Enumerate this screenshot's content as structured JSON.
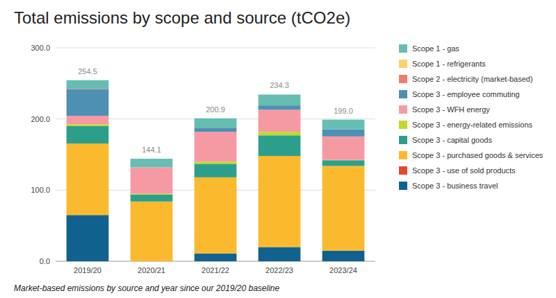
{
  "chart_data": {
    "type": "bar",
    "title": "Total emissions by scope and source (tCO2e)",
    "caption": "Market-based emissions by source and year since our 2019/20 baseline",
    "categories": [
      "2019/20",
      "2020/21",
      "2021/22",
      "2022/23",
      "2023/24"
    ],
    "stacked": true,
    "grid": true,
    "legend": "right",
    "ylim": [
      0,
      300
    ],
    "yticks": [
      {
        "value": 0,
        "label": "0.0"
      },
      {
        "value": 100,
        "label": "100.0"
      },
      {
        "value": 200,
        "label": "200.0"
      },
      {
        "value": 300,
        "label": "300.0"
      }
    ],
    "totals": [
      254.5,
      144.1,
      200.9,
      234.3,
      199.0
    ],
    "total_labels": [
      "254.5",
      "144.1",
      "200.9",
      "234.3",
      "199.0"
    ],
    "series": [
      {
        "name": "Scope 3 - business travel",
        "color": "#11618f",
        "values": [
          65.0,
          0,
          11.0,
          20.0,
          15.0
        ]
      },
      {
        "name": "Scope 3 - use of sold products",
        "color": "#e6492d",
        "values": [
          0,
          0,
          0,
          0,
          0
        ]
      },
      {
        "name": "Scope 3 - purchased goods & services",
        "color": "#fbb92e",
        "values": [
          100.5,
          84.0,
          107.0,
          128.0,
          119.0
        ]
      },
      {
        "name": "Scope 3 - capital goods",
        "color": "#2c9f8c",
        "values": [
          24.5,
          9.5,
          19.0,
          29.0,
          8.0
        ]
      },
      {
        "name": "Scope 3 - energy-related emissions",
        "color": "#c3d82b",
        "values": [
          2.5,
          1.5,
          3.0,
          5.0,
          0.5
        ]
      },
      {
        "name": "Scope 3 - WFH energy",
        "color": "#f59aa2",
        "values": [
          12.0,
          37.1,
          42.0,
          31.0,
          33.0
        ]
      },
      {
        "name": "Scope 3 - employee commuting",
        "color": "#4e8fb4",
        "values": [
          37.5,
          0,
          5.0,
          6.0,
          10.0
        ]
      },
      {
        "name": "Scope 2 - electricity (market-based)",
        "color": "#f07b72",
        "values": [
          0.5,
          0,
          0,
          0,
          0
        ]
      },
      {
        "name": "Scope 1 - refrigerants",
        "color": "#fcd36b",
        "values": [
          0,
          0,
          0,
          0,
          0
        ]
      },
      {
        "name": "Scope 1 - gas",
        "color": "#66bdb1",
        "values": [
          12.0,
          12.0,
          13.9,
          15.3,
          13.5
        ]
      }
    ]
  }
}
